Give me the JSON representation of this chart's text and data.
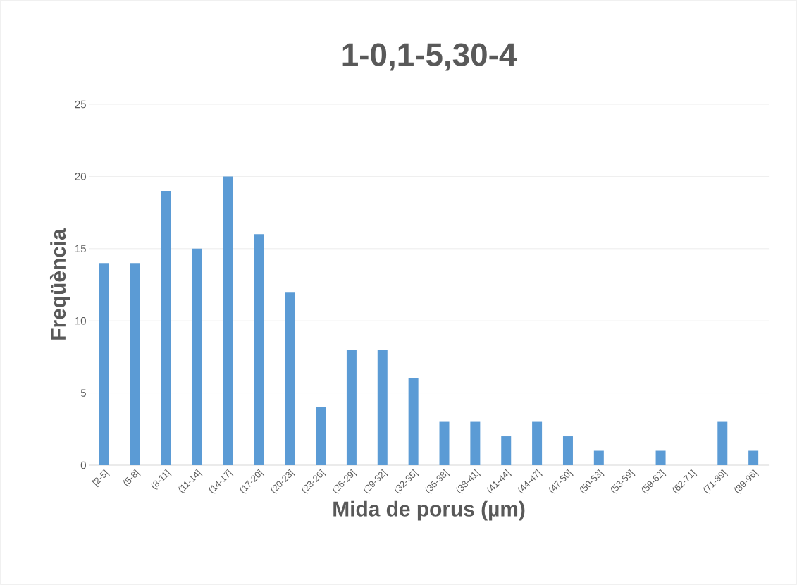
{
  "chart_data": {
    "type": "bar",
    "title": "1-0,1-5,30-4",
    "xlabel": "Mida de porus (µm)",
    "ylabel": "Freqüència",
    "categories": [
      "[2-5]",
      "(5-8]",
      "(8-11]",
      "(11-14]",
      "(14-17]",
      "(17-20]",
      "(20-23]",
      "(23-26]",
      "(26-29]",
      "(29-32]",
      "(32-35]",
      "(35-38]",
      "(38-41]",
      "(41-44]",
      "(44-47]",
      "(47-50]",
      "(50-53]",
      "(53-59]",
      "(59-62]",
      "(62-71]",
      "(71-89]",
      "(89-96]"
    ],
    "values": [
      14,
      14,
      19,
      15,
      20,
      16,
      12,
      4,
      8,
      8,
      6,
      3,
      3,
      2,
      3,
      2,
      1,
      0,
      1,
      0,
      3,
      1
    ],
    "color": "#5b9bd5",
    "ylim": [
      0,
      25
    ],
    "yticks": [
      0,
      5,
      10,
      15,
      20,
      25
    ],
    "grid": "y"
  }
}
